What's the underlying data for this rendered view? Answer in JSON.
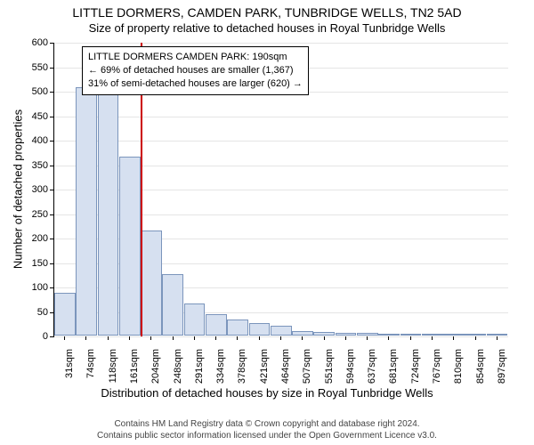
{
  "title": "LITTLE DORMERS, CAMDEN PARK, TUNBRIDGE WELLS, TN2 5AD",
  "subtitle": "Size of property relative to detached houses in Royal Tunbridge Wells",
  "y_axis_label": "Number of detached properties",
  "x_axis_label": "Distribution of detached houses by size in Royal Tunbridge Wells",
  "info_box": {
    "line1": "LITTLE DORMERS CAMDEN PARK: 190sqm",
    "line2": "← 69% of detached houses are smaller (1,367)",
    "line3": "31% of semi-detached houses are larger (620) →"
  },
  "footer": {
    "line1": "Contains HM Land Registry data © Crown copyright and database right 2024.",
    "line2": "Contains public sector information licensed under the Open Government Licence v3.0."
  },
  "chart": {
    "type": "histogram",
    "ylim": [
      0,
      600
    ],
    "ytick_start": 0,
    "ytick_step": 50,
    "x_categories": [
      "31sqm",
      "74sqm",
      "118sqm",
      "161sqm",
      "204sqm",
      "248sqm",
      "291sqm",
      "334sqm",
      "378sqm",
      "421sqm",
      "464sqm",
      "507sqm",
      "551sqm",
      "594sqm",
      "637sqm",
      "681sqm",
      "724sqm",
      "767sqm",
      "810sqm",
      "854sqm",
      "897sqm"
    ],
    "bar_values": [
      87,
      508,
      528,
      365,
      215,
      125,
      65,
      43,
      32,
      25,
      20,
      10,
      7,
      5,
      5,
      4,
      3,
      3,
      2,
      2,
      1
    ],
    "bar_fill": "#d6e0f0",
    "bar_stroke": "#7b95bc",
    "grid_color": "#e5e5e5",
    "background": "#ffffff",
    "marker": {
      "value_label": "190sqm",
      "color": "#cc0000",
      "bin_index": 3
    },
    "label_fontsize": 11,
    "axis_title_fontsize": 13
  }
}
